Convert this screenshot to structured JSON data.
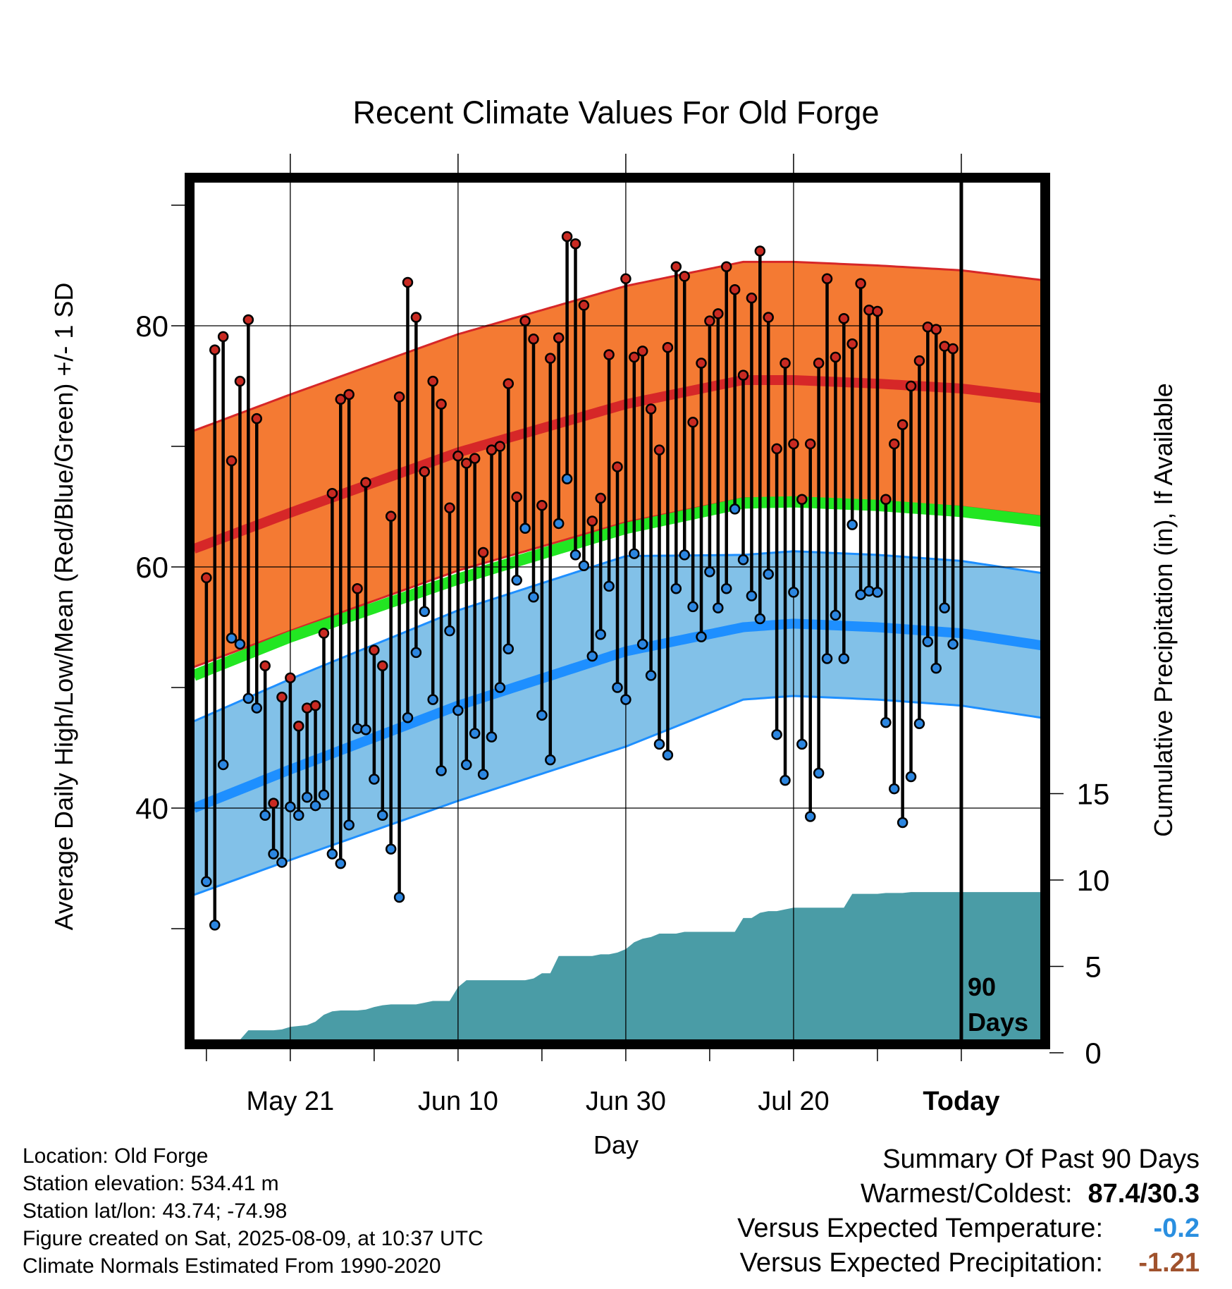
{
  "chart_data": {
    "type": "line",
    "title": "Recent Climate Values For Old Forge",
    "ylabel": "Average Daily High/Low/Mean (Red/Blue/Green) +/- 1 SD",
    "y2label": "Cumulative Precipitation (in), If Available",
    "xlabel": "Day",
    "ylim": [
      25,
      92
    ],
    "y2lim": [
      0,
      15
    ],
    "yticks": [
      40,
      60,
      80
    ],
    "y2ticks": [
      0,
      5,
      10,
      15
    ],
    "xticks": [
      {
        "label": "May 21",
        "day": 10
      },
      {
        "label": "Jun 10",
        "day": 30
      },
      {
        "label": "Jun 30",
        "day": 50
      },
      {
        "label": "Jul 20",
        "day": 70
      },
      {
        "label": "Today",
        "day": 90
      }
    ],
    "xlim": [
      -1.5,
      99.5
    ],
    "today_marker": {
      "day": 90,
      "label_line1": "90",
      "label_line2": "Days"
    },
    "normal_high": {
      "days": [
        -1.5,
        10,
        30,
        50,
        64,
        70,
        80,
        90,
        99.5
      ],
      "mean": [
        61.5,
        64.5,
        69.5,
        73.5,
        75.5,
        75.5,
        75.2,
        74.8,
        74.0
      ],
      "sd": 9.8
    },
    "normal_low": {
      "days": [
        -1.5,
        10,
        30,
        50,
        64,
        70,
        80,
        90,
        99.5
      ],
      "mean": [
        40.0,
        43.2,
        48.5,
        53.0,
        55.0,
        55.3,
        55.0,
        54.5,
        53.5
      ],
      "sd": [
        7.2,
        7.5,
        7.9,
        7.9,
        6.0,
        6.0,
        6.0,
        6.0,
        6.0
      ]
    },
    "normal_mean": {
      "days": [
        -1.5,
        10,
        30,
        50,
        64,
        70,
        80,
        90,
        99.5
      ],
      "mean": [
        51.0,
        54.2,
        59.0,
        63.2,
        65.3,
        65.4,
        65.1,
        64.6,
        63.8
      ]
    },
    "daily": [
      {
        "day": 0,
        "high": 59.1,
        "low": 33.9
      },
      {
        "day": 1,
        "high": 78.0,
        "low": 30.3
      },
      {
        "day": 2,
        "high": 79.1,
        "low": 43.6
      },
      {
        "day": 3,
        "high": 68.8,
        "low": 54.1
      },
      {
        "day": 4,
        "high": 75.4,
        "low": 53.6
      },
      {
        "day": 5,
        "high": 80.5,
        "low": 49.1
      },
      {
        "day": 6,
        "high": 72.3,
        "low": 48.3
      },
      {
        "day": 7,
        "high": 51.8,
        "low": 39.4
      },
      {
        "day": 8,
        "high": 40.4,
        "low": 36.2
      },
      {
        "day": 9,
        "high": 49.2,
        "low": 35.5
      },
      {
        "day": 10,
        "high": 50.8,
        "low": 40.1
      },
      {
        "day": 11,
        "high": 46.8,
        "low": 39.4
      },
      {
        "day": 12,
        "high": 48.3,
        "low": 40.9
      },
      {
        "day": 13,
        "high": 48.5,
        "low": 40.2
      },
      {
        "day": 14,
        "high": 54.5,
        "low": 41.1
      },
      {
        "day": 15,
        "high": 66.1,
        "low": 36.2
      },
      {
        "day": 16,
        "high": 73.9,
        "low": 35.4
      },
      {
        "day": 17,
        "high": 74.3,
        "low": 38.6
      },
      {
        "day": 18,
        "high": 58.2,
        "low": 46.6
      },
      {
        "day": 19,
        "high": 67.0,
        "low": 46.5
      },
      {
        "day": 20,
        "high": 53.1,
        "low": 42.4
      },
      {
        "day": 21,
        "high": 51.8,
        "low": 39.4
      },
      {
        "day": 22,
        "high": 64.2,
        "low": 36.6
      },
      {
        "day": 23,
        "high": 74.1,
        "low": 32.6
      },
      {
        "day": 24,
        "high": 83.6,
        "low": 47.5
      },
      {
        "day": 25,
        "high": 80.7,
        "low": 52.9
      },
      {
        "day": 26,
        "high": 67.9,
        "low": 56.3
      },
      {
        "day": 27,
        "high": 75.4,
        "low": 49.0
      },
      {
        "day": 28,
        "high": 73.5,
        "low": 43.1
      },
      {
        "day": 29,
        "high": 64.9,
        "low": 54.7
      },
      {
        "day": 30,
        "high": 69.2,
        "low": 48.1
      },
      {
        "day": 31,
        "high": 68.6,
        "low": 43.6
      },
      {
        "day": 32,
        "high": 69.0,
        "low": 46.2
      },
      {
        "day": 33,
        "high": 61.2,
        "low": 42.8
      },
      {
        "day": 34,
        "high": 69.7,
        "low": 45.9
      },
      {
        "day": 35,
        "high": 70.0,
        "low": 50.0
      },
      {
        "day": 36,
        "high": 75.2,
        "low": 53.2
      },
      {
        "day": 37,
        "high": 65.8,
        "low": 58.9
      },
      {
        "day": 38,
        "high": 80.4,
        "low": 63.2
      },
      {
        "day": 39,
        "high": 78.9,
        "low": 57.5
      },
      {
        "day": 40,
        "high": 65.1,
        "low": 47.7
      },
      {
        "day": 41,
        "high": 77.3,
        "low": 44.0
      },
      {
        "day": 42,
        "high": 79.0,
        "low": 63.6
      },
      {
        "day": 43,
        "high": 87.4,
        "low": 67.3
      },
      {
        "day": 44,
        "high": 86.8,
        "low": 61.0
      },
      {
        "day": 45,
        "high": 81.7,
        "low": 60.1
      },
      {
        "day": 46,
        "high": 63.8,
        "low": 52.6
      },
      {
        "day": 47,
        "high": 65.7,
        "low": 54.4
      },
      {
        "day": 48,
        "high": 77.6,
        "low": 58.4
      },
      {
        "day": 49,
        "high": 68.3,
        "low": 50.0
      },
      {
        "day": 50,
        "high": 83.9,
        "low": 49.0
      },
      {
        "day": 51,
        "high": 77.4,
        "low": 61.1
      },
      {
        "day": 52,
        "high": 77.9,
        "low": 53.6
      },
      {
        "day": 53,
        "high": 73.1,
        "low": 51.0
      },
      {
        "day": 54,
        "high": 69.7,
        "low": 45.3
      },
      {
        "day": 55,
        "high": 78.2,
        "low": 44.4
      },
      {
        "day": 56,
        "high": 84.9,
        "low": 58.2
      },
      {
        "day": 57,
        "high": 84.1,
        "low": 61.0
      },
      {
        "day": 58,
        "high": 72.0,
        "low": 56.7
      },
      {
        "day": 59,
        "high": 76.9,
        "low": 54.2
      },
      {
        "day": 60,
        "high": 80.4,
        "low": 59.6
      },
      {
        "day": 61,
        "high": 81.0,
        "low": 56.6
      },
      {
        "day": 62,
        "high": 84.9,
        "low": 58.2
      },
      {
        "day": 63,
        "high": 83.0,
        "low": 64.8
      },
      {
        "day": 64,
        "high": 75.9,
        "low": 60.6
      },
      {
        "day": 65,
        "high": 82.3,
        "low": 57.6
      },
      {
        "day": 66,
        "high": 86.2,
        "low": 55.7
      },
      {
        "day": 67,
        "high": 80.7,
        "low": 59.4
      },
      {
        "day": 68,
        "high": 69.8,
        "low": 46.1
      },
      {
        "day": 69,
        "high": 76.9,
        "low": 42.3
      },
      {
        "day": 70,
        "high": 70.2,
        "low": 57.9
      },
      {
        "day": 71,
        "high": 65.6,
        "low": 45.3
      },
      {
        "day": 72,
        "high": 70.2,
        "low": 39.3
      },
      {
        "day": 73,
        "high": 76.9,
        "low": 42.9
      },
      {
        "day": 74,
        "high": 83.9,
        "low": 52.4
      },
      {
        "day": 75,
        "high": 77.4,
        "low": 56.0
      },
      {
        "day": 76,
        "high": 80.6,
        "low": 52.4
      },
      {
        "day": 77,
        "high": 78.5,
        "low": 63.5
      },
      {
        "day": 78,
        "high": 83.5,
        "low": 57.7
      },
      {
        "day": 79,
        "high": 81.3,
        "low": 58.0
      },
      {
        "day": 80,
        "high": 81.2,
        "low": 57.9
      },
      {
        "day": 81,
        "high": 65.6,
        "low": 47.1
      },
      {
        "day": 82,
        "high": 70.2,
        "low": 41.6
      },
      {
        "day": 83,
        "high": 71.8,
        "low": 38.8
      },
      {
        "day": 84,
        "high": 75.0,
        "low": 42.6
      },
      {
        "day": 85,
        "high": 77.1,
        "low": 47.0
      },
      {
        "day": 86,
        "high": 79.9,
        "low": 53.8
      },
      {
        "day": 87,
        "high": 79.7,
        "low": 51.6
      },
      {
        "day": 88,
        "high": 78.3,
        "low": 56.6
      },
      {
        "day": 89,
        "high": 78.1,
        "low": 53.6
      }
    ],
    "precip_cumulative": {
      "days": [
        3,
        3.5,
        4,
        5,
        6,
        7,
        8,
        9,
        10,
        11,
        12,
        13,
        14,
        15,
        16,
        17,
        18,
        19,
        20,
        21,
        22,
        23,
        24,
        25,
        26,
        27,
        28,
        29,
        30,
        31,
        32,
        33,
        34,
        35,
        36,
        37,
        38,
        39,
        40,
        41,
        42,
        43,
        44,
        45,
        46,
        47,
        48,
        49,
        50,
        51,
        52,
        53,
        54,
        55,
        56,
        57,
        58,
        59,
        60,
        61,
        62,
        63,
        64,
        65,
        66,
        67,
        68,
        69,
        70,
        71,
        72,
        73,
        74,
        75,
        76,
        77,
        78,
        79,
        80,
        81,
        82,
        83,
        84,
        85,
        86,
        87,
        88,
        89,
        90,
        99.5
      ],
      "values": [
        0.0,
        0.4,
        0.75,
        1.3,
        1.3,
        1.3,
        1.3,
        1.35,
        1.5,
        1.55,
        1.6,
        1.8,
        2.2,
        2.4,
        2.45,
        2.45,
        2.45,
        2.5,
        2.65,
        2.75,
        2.8,
        2.8,
        2.8,
        2.8,
        2.9,
        3.0,
        3.0,
        3.0,
        3.8,
        4.2,
        4.2,
        4.2,
        4.2,
        4.2,
        4.2,
        4.2,
        4.2,
        4.3,
        4.6,
        4.6,
        5.6,
        5.6,
        5.6,
        5.6,
        5.6,
        5.7,
        5.7,
        5.8,
        6.0,
        6.4,
        6.6,
        6.7,
        6.9,
        6.9,
        6.9,
        7.0,
        7.0,
        7.0,
        7.0,
        7.0,
        7.0,
        7.0,
        7.8,
        7.8,
        8.1,
        8.2,
        8.2,
        8.3,
        8.4,
        8.4,
        8.4,
        8.4,
        8.4,
        8.4,
        8.4,
        9.2,
        9.2,
        9.2,
        9.2,
        9.25,
        9.25,
        9.25,
        9.3,
        9.3,
        9.3,
        9.3,
        9.3,
        9.3,
        9.3,
        9.3
      ]
    },
    "colors": {
      "high_band": "#f47a33",
      "high_line": "#d62728",
      "low_band": "#82c1e8",
      "low_line": "#1e8fff",
      "mean_line": "#22e622",
      "precip_fill": "#4a9ca6",
      "high_dot": "#c92a22",
      "low_dot": "#2c86e0"
    }
  },
  "info": {
    "location": "Location: Old Forge",
    "elevation": "Station elevation: 534.41 m",
    "latlon": "Station lat/lon: 43.74; -74.98",
    "created": "Figure created on Sat, 2025-08-09, at 10:37 UTC",
    "normals": "Climate Normals Estimated From 1990-2020"
  },
  "summary": {
    "heading": "Summary Of Past 90 Days",
    "warmest_label": "Warmest/Coldest:",
    "warmest_value": "87.4/30.3",
    "temp_label": "Versus Expected Temperature:",
    "temp_value": "-0.2",
    "temp_color": "#2a8fe0",
    "precip_label": "Versus Expected Precipitation:",
    "precip_value": "-1.21",
    "precip_color": "#a0522d"
  }
}
